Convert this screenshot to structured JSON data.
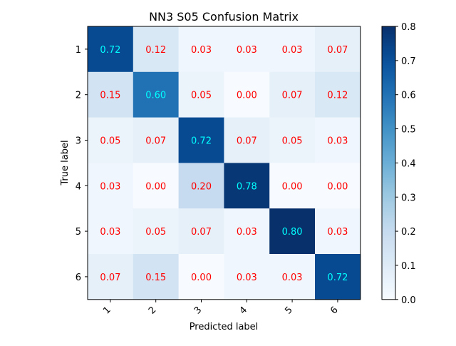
{
  "chart_data": {
    "type": "heatmap",
    "title": "NN3 S05 Confusion Matrix",
    "xlabel": "Predicted label",
    "ylabel": "True label",
    "x_categories": [
      "1",
      "2",
      "3",
      "4",
      "5",
      "6"
    ],
    "y_categories": [
      "1",
      "2",
      "3",
      "4",
      "5",
      "6"
    ],
    "matrix": [
      [
        0.72,
        0.12,
        0.03,
        0.03,
        0.03,
        0.07
      ],
      [
        0.15,
        0.6,
        0.05,
        0.0,
        0.07,
        0.12
      ],
      [
        0.05,
        0.07,
        0.72,
        0.07,
        0.05,
        0.03
      ],
      [
        0.03,
        0.0,
        0.2,
        0.78,
        0.0,
        0.0
      ],
      [
        0.03,
        0.05,
        0.07,
        0.03,
        0.8,
        0.03
      ],
      [
        0.07,
        0.15,
        0.0,
        0.03,
        0.03,
        0.72
      ]
    ],
    "value_range": [
      0.0,
      0.8
    ],
    "colormap": "Blues",
    "colorbar_ticks": [
      "0.0",
      "0.1",
      "0.2",
      "0.3",
      "0.4",
      "0.5",
      "0.6",
      "0.7",
      "0.8"
    ],
    "annotation_colors": {
      "dark_cell": "#00ffff",
      "light_cell": "#ff0000"
    },
    "xtick_rotation_deg": 45
  }
}
